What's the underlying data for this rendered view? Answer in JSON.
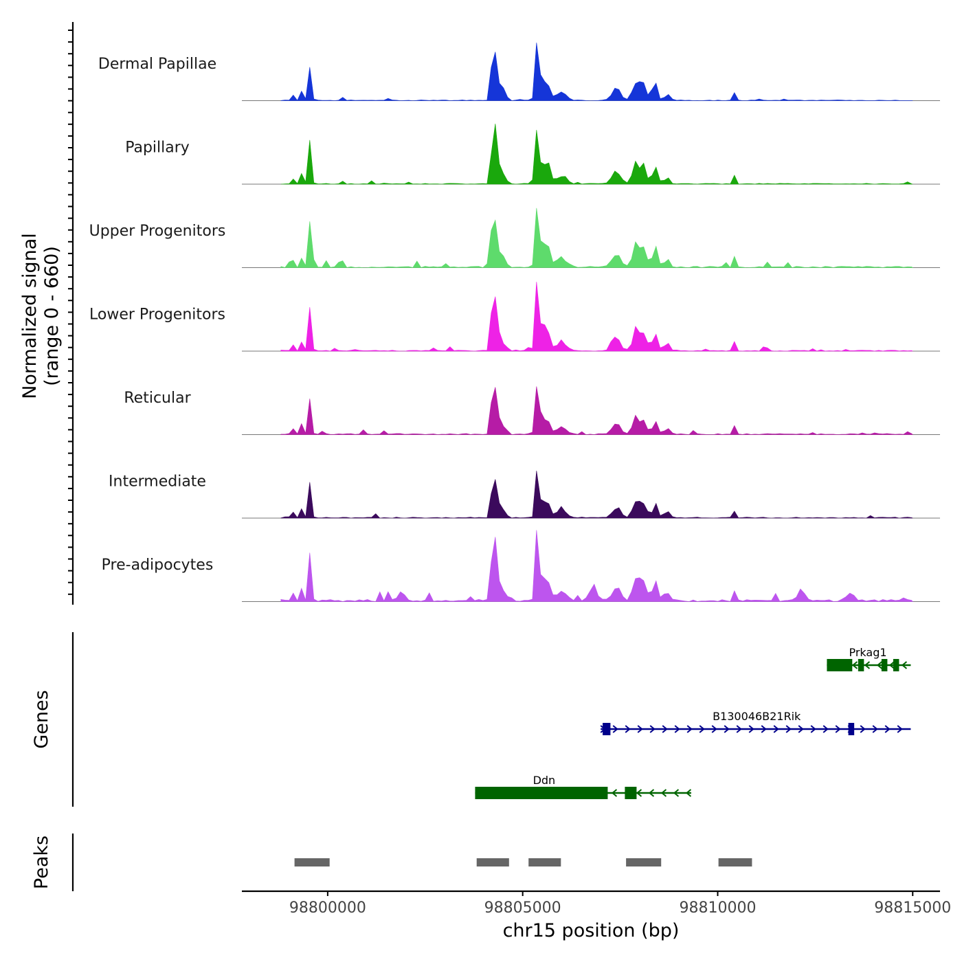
{
  "chart_data": {
    "type": "area",
    "title": "",
    "chromosome": "chr15",
    "xlabel": "chr15 position (bp)",
    "xlim": [
      98797800,
      98815700
    ],
    "x_ticks": [
      98800000,
      98805000,
      98810000,
      98815000
    ],
    "x_tick_labels": [
      "98800000",
      "98805000",
      "98810000",
      "98815000"
    ],
    "signal_ylabel": "Normalized signal",
    "signal_yrange_label": "(range 0 - 660)",
    "ylim": [
      0,
      660
    ],
    "genes_ylabel": "Genes",
    "peaks_ylabel": "Peaks",
    "tracks": [
      {
        "name": "Dermal Papillae",
        "color": "#1535d8",
        "scale": 0.95,
        "noise": 0.8,
        "extra": []
      },
      {
        "name": "Papillary",
        "color": "#1aa80c",
        "scale": 1.0,
        "noise": 0.9,
        "extra": []
      },
      {
        "name": "Upper Progenitors",
        "color": "#5edb6c",
        "scale": 1.1,
        "noise": 1.6,
        "extra": []
      },
      {
        "name": "Lower Progenitors",
        "color": "#ee22e6",
        "scale": 1.05,
        "noise": 1.0,
        "extra": []
      },
      {
        "name": "Reticular",
        "color": "#b61ca6",
        "scale": 0.85,
        "noise": 1.2,
        "extra": []
      },
      {
        "name": "Intermediate",
        "color": "#3b0a5c",
        "scale": 0.85,
        "noise": 1.1,
        "extra": []
      },
      {
        "name": "Pre-adipocytes",
        "color": "#bd55ee",
        "scale": 1.1,
        "noise": 2.4,
        "extra": [
          [
            98801900,
            0.12
          ],
          [
            98806800,
            0.16
          ],
          [
            98812150,
            0.14
          ],
          [
            98813400,
            0.1
          ]
        ]
      }
    ],
    "signal_peaks": [
      [
        98799540,
        0.55,
        40
      ],
      [
        98799330,
        0.12,
        30
      ],
      [
        98799100,
        0.08,
        40
      ],
      [
        98804250,
        1.0,
        45
      ],
      [
        98804370,
        0.28,
        50
      ],
      [
        98804550,
        0.22,
        35
      ],
      [
        98805380,
        0.85,
        50
      ],
      [
        98805600,
        0.3,
        90
      ],
      [
        98806000,
        0.12,
        120
      ],
      [
        98807400,
        0.16,
        110
      ],
      [
        98807900,
        0.28,
        80
      ],
      [
        98808100,
        0.22,
        80
      ],
      [
        98808400,
        0.26,
        60
      ],
      [
        98808700,
        0.09,
        70
      ],
      [
        98810420,
        0.12,
        30
      ]
    ],
    "genes": [
      {
        "name": "Prkag1",
        "strand": "-",
        "start": 98812800,
        "end": 98814950,
        "row": 0,
        "color": "#006400",
        "exons": [
          [
            98812800,
            98813450
          ],
          [
            98813600,
            98813750
          ],
          [
            98814200,
            98814350
          ],
          [
            98814500,
            98814650
          ]
        ]
      },
      {
        "name": "B130046B21Rik",
        "strand": "+",
        "start": 98807000,
        "end": 98814950,
        "row": 1,
        "color": "#00008b",
        "exons": [
          [
            98807050,
            98807250
          ],
          [
            98813350,
            98813500
          ]
        ]
      },
      {
        "name": "Ddn",
        "strand": "-",
        "start": 98803780,
        "end": 98809320,
        "row": 2,
        "color": "#006400",
        "exons": [
          [
            98803780,
            98807180
          ],
          [
            98807620,
            98807920
          ]
        ]
      }
    ],
    "peaks": [
      [
        98799150,
        98800050
      ],
      [
        98803820,
        98804650
      ],
      [
        98805150,
        98805980
      ],
      [
        98807650,
        98808550
      ],
      [
        98810020,
        98810880
      ]
    ]
  }
}
